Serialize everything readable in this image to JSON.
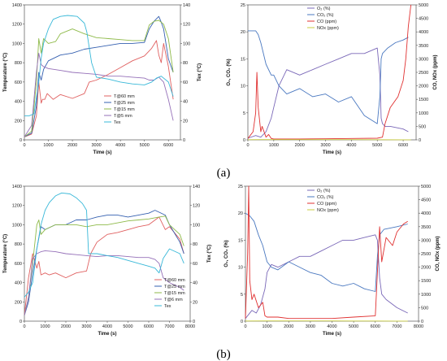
{
  "panel_labels": [
    "(a)",
    "(b)"
  ],
  "chart_data": [
    {
      "id": "a_temp",
      "type": "line",
      "xlabel": "Time (s)",
      "ylabel": "Temperature (°C)",
      "y2label": "Tex (°C)",
      "xlim": [
        0,
        6500
      ],
      "ylim": [
        0,
        1400
      ],
      "y2lim": [
        0,
        140
      ],
      "xticks": [
        0,
        1000,
        2000,
        3000,
        4000,
        5000,
        6000
      ],
      "yticks": [
        0,
        200,
        400,
        600,
        800,
        1000,
        1200,
        1400
      ],
      "y2ticks": [
        0,
        20,
        40,
        60,
        80,
        100,
        120,
        140
      ],
      "legend_position": "bottom-right",
      "series": [
        {
          "name": "T@60 mm",
          "color": "#e06060",
          "axis": "left",
          "x": [
            0,
            300,
            500,
            600,
            700,
            750,
            850,
            950,
            1200,
            1500,
            2000,
            2500,
            2700,
            3000,
            3500,
            4000,
            4500,
            5000,
            5300,
            5500,
            5600,
            5700,
            5800,
            6000,
            6200
          ],
          "y": [
            30,
            60,
            250,
            600,
            380,
            420,
            420,
            480,
            420,
            470,
            430,
            480,
            600,
            620,
            680,
            750,
            820,
            870,
            950,
            1030,
            880,
            800,
            1000,
            760,
            420
          ]
        },
        {
          "name": "T@25 mm",
          "color": "#3560b0",
          "axis": "left",
          "x": [
            0,
            300,
            500,
            600,
            700,
            800,
            1000,
            1500,
            2000,
            2500,
            3000,
            3500,
            4000,
            4500,
            5000,
            5200,
            5400,
            5600,
            5700,
            5800,
            6000,
            6200
          ],
          "y": [
            30,
            70,
            350,
            700,
            620,
            730,
            820,
            880,
            900,
            940,
            960,
            980,
            1000,
            1000,
            1010,
            1150,
            1230,
            1280,
            1220,
            1150,
            840,
            700
          ]
        },
        {
          "name": "T@15 mm",
          "color": "#8fba4a",
          "axis": "left",
          "x": [
            0,
            300,
            500,
            600,
            700,
            800,
            1000,
            1300,
            1500,
            2000,
            2500,
            3000,
            3500,
            4000,
            4500,
            5000,
            5200,
            5400,
            5600,
            5800,
            6000,
            6200
          ],
          "y": [
            30,
            90,
            600,
            1050,
            900,
            1050,
            1000,
            1020,
            1100,
            1150,
            1100,
            1060,
            1050,
            1040,
            1030,
            1030,
            1190,
            1230,
            1240,
            1200,
            1050,
            700
          ]
        },
        {
          "name": "T@5 mm",
          "color": "#9570b8",
          "axis": "left",
          "x": [
            0,
            300,
            500,
            600,
            700,
            800,
            1000,
            1500,
            2000,
            2500,
            3000,
            3500,
            4000,
            4500,
            5000,
            5200,
            5400,
            5600,
            5800,
            6000,
            6200
          ],
          "y": [
            30,
            150,
            700,
            900,
            780,
            760,
            740,
            720,
            700,
            690,
            680,
            660,
            660,
            650,
            640,
            620,
            620,
            650,
            600,
            420,
            200
          ]
        },
        {
          "name": "Tex",
          "color": "#38b8d8",
          "axis": "right",
          "x": [
            0,
            200,
            400,
            600,
            700,
            800,
            1000,
            1200,
            1500,
            1800,
            2200,
            2500,
            2600,
            2800,
            3000,
            3500,
            4000,
            4500,
            5000,
            5300,
            5500,
            5700,
            6000,
            6200
          ],
          "y": [
            25,
            25,
            27,
            60,
            85,
            100,
            115,
            125,
            128,
            129,
            128,
            121,
            112,
            80,
            65,
            63,
            60,
            58,
            57,
            60,
            64,
            66,
            60,
            45
          ]
        }
      ]
    },
    {
      "id": "a_gas",
      "type": "line",
      "xlabel": "Time (s)",
      "ylabel": "O₂, CO₂ (%)",
      "y2label": "CO, NOx (ppm)",
      "xlim": [
        0,
        6500
      ],
      "ylim": [
        0,
        25
      ],
      "y2lim": [
        0,
        5000
      ],
      "xticks": [
        0,
        1000,
        2000,
        3000,
        4000,
        5000,
        6000
      ],
      "yticks": [
        0,
        5,
        10,
        15,
        20,
        25
      ],
      "y2ticks": [
        0,
        500,
        1000,
        1500,
        2000,
        2500,
        3000,
        3500,
        4000,
        4500,
        5000
      ],
      "legend_position": "top-center",
      "series": [
        {
          "name": "O₂ (%)",
          "color": "#7a68b8",
          "axis": "left",
          "x": [
            0,
            300,
            500,
            700,
            900,
            1000,
            1200,
            1500,
            2000,
            2500,
            3000,
            3500,
            4000,
            4500,
            5000,
            5100,
            5150,
            5200,
            5300,
            5500,
            6000,
            6200
          ],
          "y": [
            0.3,
            0.8,
            0.5,
            1.5,
            4,
            6,
            10,
            13,
            12,
            13,
            14,
            15,
            16,
            16,
            17,
            12,
            4,
            3,
            2.5,
            2.5,
            2,
            1.5
          ]
        },
        {
          "name": "CO₂ (%)",
          "color": "#4a78c0",
          "axis": "left",
          "x": [
            0,
            300,
            400,
            500,
            700,
            900,
            1000,
            1200,
            1500,
            2000,
            2500,
            3000,
            3500,
            4000,
            4500,
            5000,
            5100,
            5150,
            5200,
            5400,
            5700,
            6000,
            6200
          ],
          "y": [
            20.2,
            20.2,
            19.5,
            18,
            14,
            12,
            12,
            10,
            8.5,
            9.5,
            8,
            8.5,
            7,
            8,
            4.5,
            3,
            8,
            15,
            16,
            17,
            18,
            18.5,
            19
          ]
        },
        {
          "name": "CO (ppm)",
          "color": "#e03030",
          "axis": "right",
          "x": [
            0,
            200,
            300,
            350,
            400,
            500,
            550,
            700,
            800,
            900,
            1000,
            1500,
            2000,
            3000,
            4000,
            5000,
            5200,
            5300,
            5500,
            5800,
            6000,
            6100,
            6200,
            6300
          ],
          "y": [
            50,
            300,
            1000,
            2500,
            1200,
            300,
            500,
            100,
            200,
            50,
            30,
            30,
            30,
            40,
            50,
            60,
            100,
            600,
            1200,
            1600,
            2200,
            3000,
            4200,
            5000
          ]
        },
        {
          "name": "NOx (ppm)",
          "color": "#c8cc40",
          "axis": "right",
          "x": [
            0,
            500,
            1000,
            2000,
            3000,
            4000,
            5000,
            6000,
            6300
          ],
          "y": [
            5,
            10,
            10,
            10,
            8,
            8,
            6,
            4,
            3
          ]
        }
      ]
    },
    {
      "id": "b_temp",
      "type": "line",
      "xlabel": "Time (s)",
      "ylabel": "Temperature (°C)",
      "y2label": "Tex (°C)",
      "xlim": [
        0,
        8000
      ],
      "ylim": [
        0,
        1400
      ],
      "y2lim": [
        0,
        140
      ],
      "xticks": [
        0,
        1000,
        2000,
        3000,
        4000,
        5000,
        6000,
        7000,
        8000
      ],
      "yticks": [
        0,
        200,
        400,
        600,
        800,
        1000,
        1200,
        1400
      ],
      "y2ticks": [
        0,
        20,
        40,
        60,
        80,
        100,
        120,
        140
      ],
      "legend_position": "bottom-right",
      "series": [
        {
          "name": "T@60 mm",
          "color": "#e06060",
          "axis": "left",
          "x": [
            0,
            200,
            400,
            600,
            700,
            800,
            1000,
            1200,
            1500,
            2000,
            2500,
            3000,
            3200,
            3500,
            4000,
            4500,
            5000,
            5500,
            6000,
            6500,
            6800,
            7000,
            7500,
            7700
          ],
          "y": [
            60,
            450,
            700,
            550,
            620,
            480,
            500,
            480,
            500,
            450,
            500,
            520,
            700,
            820,
            900,
            920,
            950,
            980,
            1000,
            1080,
            950,
            980,
            850,
            700
          ]
        },
        {
          "name": "T@25 mm",
          "color": "#3560b0",
          "axis": "left",
          "x": [
            0,
            200,
            400,
            600,
            800,
            1000,
            1500,
            2000,
            2500,
            3000,
            3500,
            4000,
            4500,
            5000,
            5500,
            6000,
            6300,
            6500,
            6800,
            7000,
            7500,
            7700
          ],
          "y": [
            60,
            200,
            500,
            750,
            980,
            950,
            1000,
            1000,
            1050,
            1050,
            1080,
            1100,
            1100,
            1080,
            1100,
            1120,
            1150,
            1130,
            1100,
            1000,
            820,
            700
          ]
        },
        {
          "name": "T@15 mm",
          "color": "#8fba4a",
          "axis": "left",
          "x": [
            0,
            200,
            400,
            600,
            700,
            800,
            1000,
            1500,
            2000,
            2500,
            3000,
            3500,
            4000,
            4500,
            5000,
            5500,
            6000,
            6500,
            6800,
            7000,
            7500,
            7700
          ],
          "y": [
            60,
            250,
            600,
            1000,
            1050,
            900,
            950,
            1000,
            1000,
            1000,
            980,
            1000,
            1000,
            1020,
            1040,
            1050,
            1060,
            1080,
            1090,
            1000,
            900,
            780
          ]
        },
        {
          "name": "T@6 mm",
          "color": "#9570b8",
          "axis": "left",
          "x": [
            0,
            200,
            400,
            600,
            800,
            1000,
            1500,
            2000,
            2500,
            3000,
            3500,
            4000,
            4500,
            5000,
            5500,
            6000,
            6300,
            6500,
            6700,
            7000,
            7500,
            7700
          ],
          "y": [
            60,
            250,
            650,
            700,
            720,
            730,
            720,
            700,
            690,
            680,
            670,
            680,
            680,
            670,
            660,
            660,
            640,
            600,
            450,
            400,
            350,
            320
          ]
        },
        {
          "name": "Tex",
          "color": "#38b8d8",
          "axis": "right",
          "x": [
            0,
            200,
            400,
            600,
            800,
            1000,
            1200,
            1500,
            1800,
            2200,
            2500,
            2800,
            3000,
            3100,
            3500,
            4000,
            4500,
            5000,
            5500,
            6000,
            6300,
            6500,
            6700,
            7000,
            7500,
            7700
          ],
          "y": [
            25,
            30,
            40,
            75,
            100,
            115,
            123,
            130,
            133,
            132,
            128,
            122,
            115,
            70,
            70,
            68,
            66,
            63,
            60,
            57,
            55,
            50,
            65,
            75,
            70,
            60
          ]
        }
      ]
    },
    {
      "id": "b_gas",
      "type": "line",
      "xlabel": "Time (s)",
      "ylabel": "O₂, CO₂ (%)",
      "y2label": "CO, NOx (ppm)",
      "xlim": [
        0,
        8000
      ],
      "ylim": [
        0,
        25
      ],
      "y2lim": [
        0,
        5000
      ],
      "xticks": [
        0,
        1000,
        2000,
        3000,
        4000,
        5000,
        6000,
        7000,
        8000
      ],
      "yticks": [
        0,
        5,
        10,
        15,
        20,
        25
      ],
      "y2ticks": [
        0,
        500,
        1000,
        1500,
        2000,
        2500,
        3000,
        3500,
        4000,
        4500,
        5000
      ],
      "legend_position": "top-center",
      "series": [
        {
          "name": "O₂ (%)",
          "color": "#7a68b8",
          "axis": "left",
          "x": [
            0,
            300,
            500,
            700,
            900,
            1000,
            1200,
            1500,
            2000,
            2500,
            3000,
            3500,
            4000,
            4500,
            5000,
            5500,
            6000,
            6100,
            6200,
            6300,
            6500,
            7000,
            7500
          ],
          "y": [
            0.5,
            2,
            1.5,
            3,
            6,
            9,
            10.5,
            10,
            11,
            12,
            12,
            13,
            14,
            15,
            15,
            15.5,
            16,
            15,
            8,
            5,
            4,
            2.5,
            1.5
          ]
        },
        {
          "name": "CO₂ (%)",
          "color": "#4a78c0",
          "axis": "left",
          "x": [
            0,
            200,
            400,
            600,
            800,
            1000,
            1200,
            1500,
            2000,
            2500,
            3000,
            3500,
            4000,
            4500,
            5000,
            5500,
            6000,
            6100,
            6200,
            6400,
            7000,
            7500
          ],
          "y": [
            20,
            19.5,
            18.5,
            16,
            14,
            11,
            10,
            9.5,
            11,
            10,
            9,
            8.5,
            7,
            6.5,
            7,
            6,
            5.5,
            12,
            16,
            17,
            17.5,
            18
          ]
        },
        {
          "name": "CO (ppm)",
          "color": "#e03030",
          "axis": "right",
          "x": [
            0,
            100,
            150,
            200,
            300,
            400,
            600,
            800,
            900,
            1000,
            1500,
            2000,
            3000,
            4000,
            5000,
            6000,
            6200,
            6300,
            6500,
            6800,
            7000,
            7300,
            7500
          ],
          "y": [
            100,
            2500,
            5000,
            1500,
            800,
            1000,
            500,
            700,
            200,
            150,
            150,
            100,
            100,
            100,
            150,
            200,
            3500,
            2200,
            3100,
            2800,
            3300,
            3600,
            3700
          ]
        },
        {
          "name": "NOx (ppm)",
          "color": "#c8cc40",
          "axis": "right",
          "x": [
            0,
            1000,
            2000,
            3000,
            4000,
            5000,
            6000,
            7000,
            7500
          ],
          "y": [
            5,
            10,
            10,
            8,
            8,
            6,
            5,
            4,
            3
          ]
        }
      ]
    }
  ]
}
